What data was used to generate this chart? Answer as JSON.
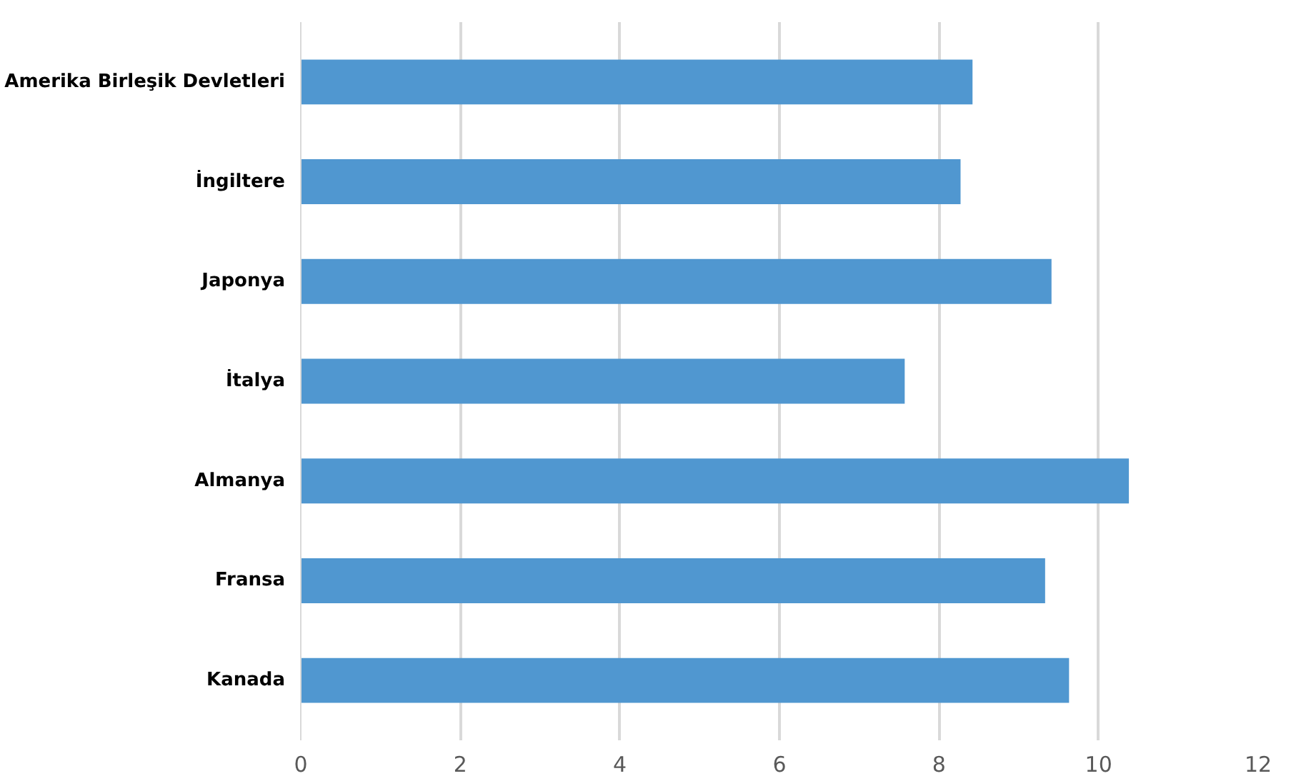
{
  "chart_data": {
    "type": "bar",
    "orientation": "horizontal",
    "categories": [
      "Amerika Birleşik Devletleri",
      "İngiltere",
      "Japonya",
      "İtalya",
      "Almanya",
      "Fransa",
      "Kanada"
    ],
    "values": [
      8.42,
      8.27,
      9.41,
      7.57,
      10.38,
      9.33,
      9.63
    ],
    "color": "#5097d0",
    "xlim": [
      0,
      12
    ],
    "xticks": [
      0,
      2,
      4,
      6,
      8,
      10,
      12
    ],
    "grid": "x"
  }
}
